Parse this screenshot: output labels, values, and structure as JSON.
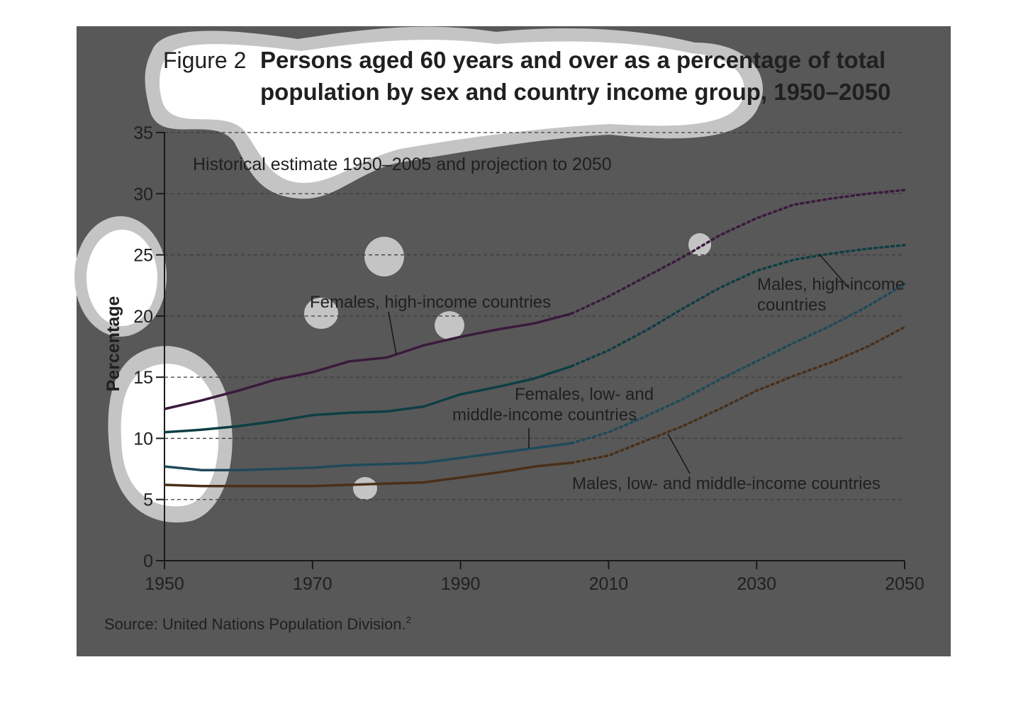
{
  "figure": {
    "number": "Figure 2",
    "title_line1": "Persons aged 60 years and over as a percentage of total",
    "title_line2": "population by sex and country income group, 1950–2050",
    "subtitle": "Historical estimate 1950–2005 and projection to 2050",
    "source": "Source: United Nations Population Division.",
    "source_sup": "2"
  },
  "chart_data": {
    "type": "line",
    "title": "Persons aged 60 years and over as a percentage of total population by sex and country income group, 1950–2050",
    "subtitle": "Historical estimate 1950–2005 and projection to 2050",
    "ylabel": "Percentage",
    "xlabel": "",
    "xlim": [
      1950,
      2050
    ],
    "ylim": [
      0,
      35
    ],
    "x_ticks": [
      1950,
      1970,
      1990,
      2010,
      2030,
      2050
    ],
    "y_ticks": [
      0,
      5,
      10,
      15,
      20,
      25,
      30,
      35
    ],
    "grid": "horizontal dashed",
    "historical_end": 2005,
    "x": [
      1950,
      1955,
      1960,
      1965,
      1970,
      1975,
      1980,
      1985,
      1990,
      1995,
      2000,
      2005,
      2010,
      2015,
      2020,
      2025,
      2030,
      2035,
      2040,
      2045,
      2050
    ],
    "series": [
      {
        "name": "Females, high-income countries",
        "color": "#3a1a3c",
        "values": [
          12.4,
          13.1,
          13.9,
          14.8,
          15.4,
          16.3,
          16.6,
          17.6,
          18.3,
          18.9,
          19.4,
          20.2,
          21.6,
          23.2,
          24.8,
          26.6,
          28.0,
          29.1,
          29.6,
          30.0,
          30.3
        ]
      },
      {
        "name": "Males, high-income countries",
        "color": "#0e3e44",
        "values": [
          10.5,
          10.7,
          11.0,
          11.4,
          11.9,
          12.1,
          12.2,
          12.6,
          13.6,
          14.2,
          14.9,
          15.9,
          17.2,
          18.8,
          20.6,
          22.3,
          23.7,
          24.6,
          25.1,
          25.5,
          25.8
        ]
      },
      {
        "name": "Females, low- and middle-income countries",
        "color": "#1f4a5a",
        "values": [
          7.7,
          7.4,
          7.4,
          7.5,
          7.6,
          7.8,
          7.9,
          8.0,
          8.4,
          8.8,
          9.2,
          9.6,
          10.5,
          11.8,
          13.2,
          14.8,
          16.3,
          17.8,
          19.2,
          20.8,
          22.6
        ]
      },
      {
        "name": "Males, low- and middle-income countries",
        "color": "#4a3018",
        "values": [
          6.2,
          6.1,
          6.1,
          6.1,
          6.1,
          6.2,
          6.3,
          6.4,
          6.8,
          7.2,
          7.7,
          8.0,
          8.6,
          9.8,
          11.0,
          12.4,
          13.9,
          15.1,
          16.2,
          17.5,
          19.1
        ]
      }
    ],
    "annotations": [
      {
        "text": "Females, high-income countries",
        "points_to": [
          1980,
          16.7
        ]
      },
      {
        "text": "Males, high-income countries",
        "points_to": [
          2039,
          25.0
        ]
      },
      {
        "text": "Females, low- and middle-income countries",
        "points_to": [
          1999,
          9.2
        ]
      },
      {
        "text": "Males, low- and middle-income countries",
        "points_to": [
          2016,
          10.3
        ]
      }
    ]
  },
  "labels": {
    "females_high_line1": "Females, high-income countries",
    "males_high_line1": "Males, high-income",
    "males_high_line2": "countries",
    "females_low_line1": "Females, low- and",
    "females_low_line2": "middle-income countries",
    "males_low_line1": "Males, low- and middle-income countries"
  }
}
